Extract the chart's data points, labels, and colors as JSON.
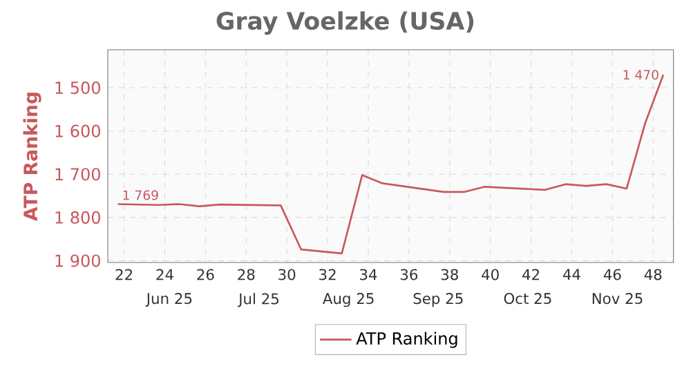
{
  "chart_data": {
    "type": "line",
    "title": "Gray Voelzke (USA)",
    "ylabel": "ATP Ranking",
    "x": [
      21.7,
      23.7,
      24.7,
      25.7,
      26.7,
      29.7,
      30.7,
      32.7,
      33.7,
      34.7,
      37.7,
      38.7,
      39.7,
      42.7,
      43.7,
      44.7,
      45.7,
      46.7,
      47.6,
      48.5
    ],
    "series": [
      {
        "name": "ATP Ranking",
        "color": "#c8585c",
        "values": [
          1769,
          1771,
          1769,
          1774,
          1770,
          1772,
          1874,
          1883,
          1702,
          1721,
          1741,
          1741,
          1729,
          1736,
          1723,
          1727,
          1723,
          1733,
          1583,
          1470
        ],
        "value_labels": [
          "1 769",
          null,
          null,
          null,
          null,
          null,
          null,
          null,
          null,
          null,
          null,
          null,
          null,
          null,
          null,
          null,
          null,
          null,
          null,
          "1 470"
        ]
      }
    ],
    "xlim": [
      21.2,
      49
    ],
    "xticks": [
      22,
      24,
      26,
      28,
      30,
      32,
      34,
      36,
      38,
      40,
      42,
      44,
      46,
      48
    ],
    "ylim": [
      1904,
      1412
    ],
    "yticks": [
      {
        "value": 1500,
        "label": "1 500"
      },
      {
        "value": 1600,
        "label": "1 600"
      },
      {
        "value": 1700,
        "label": "1 700"
      },
      {
        "value": 1800,
        "label": "1 800"
      },
      {
        "value": 1900,
        "label": "1 900"
      }
    ],
    "annotations": [
      "Jun 25",
      "Jul 25",
      "Aug 25",
      "Sep 25",
      "Oct 25",
      "Nov 25"
    ],
    "grid": true,
    "legend": "bottom",
    "marker": "none",
    "line_style": "solid"
  }
}
